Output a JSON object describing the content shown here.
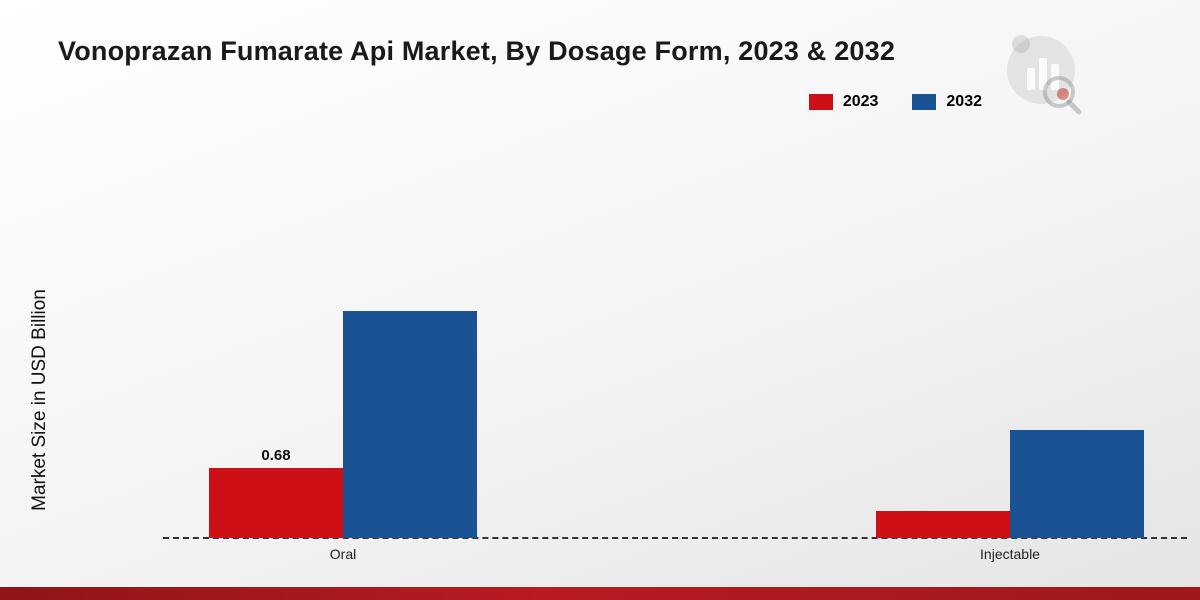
{
  "title": "Vonoprazan Fumarate Api Market, By Dosage Form, 2023 & 2032",
  "y_axis_label": "Market Size in USD Billion",
  "legend": [
    {
      "label": "2023",
      "color": "#cc1016"
    },
    {
      "label": "2032",
      "color": "#1a5293"
    }
  ],
  "chart_data": {
    "type": "bar",
    "title": "Vonoprazan Fumarate Api Market, By Dosage Form, 2023 & 2032",
    "ylabel": "Market Size in USD Billion",
    "xlabel": "",
    "categories": [
      "Oral",
      "Injectable"
    ],
    "series": [
      {
        "name": "2023",
        "color": "#cc1016",
        "values": [
          0.68,
          0.26
        ]
      },
      {
        "name": "2032",
        "color": "#1a5293",
        "values": [
          2.2,
          1.05
        ]
      }
    ],
    "data_labels": [
      {
        "series": "2023",
        "category": "Oral",
        "text": "0.68"
      }
    ],
    "ylim": [
      0,
      4
    ],
    "grid": false,
    "legend_position": "top-right",
    "baseline_style": "dashed"
  }
}
